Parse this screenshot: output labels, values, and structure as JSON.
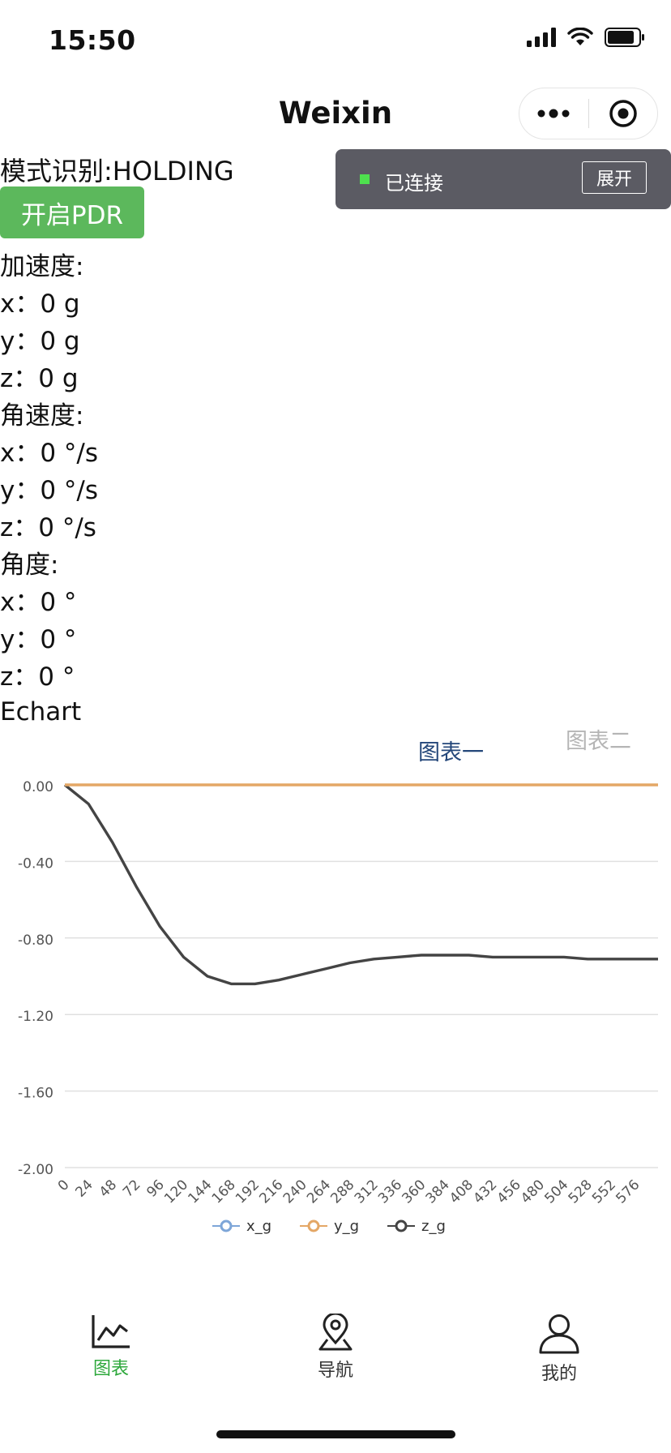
{
  "status_bar": {
    "time": "15:50"
  },
  "title_bar": {
    "title": "Weixin"
  },
  "toast": {
    "status": "已连接",
    "expand_label": "展开"
  },
  "mode": {
    "label": "模式识别:HOLDING"
  },
  "pdr_button": {
    "label": "开启PDR"
  },
  "sensors": {
    "accel_heading": "加速度:",
    "accel_x": "x：0 g",
    "accel_y": "y：0 g",
    "accel_z": "z：0 g",
    "gyro_heading": "角速度:",
    "gyro_x": "x：0 °/s",
    "gyro_y": "y：0 °/s",
    "gyro_z": "z：0 °/s",
    "angle_heading": "角度:",
    "angle_x": "x：0 °",
    "angle_y": "y：0 °",
    "angle_z": "z：0 °"
  },
  "echart_label": "Echart",
  "chart_tabs": {
    "active": "图表一",
    "inactive": "图表二"
  },
  "chart_data": {
    "type": "line",
    "x": [
      0,
      24,
      48,
      72,
      96,
      120,
      144,
      168,
      192,
      216,
      240,
      264,
      288,
      312,
      336,
      360,
      384,
      408,
      432,
      456,
      480,
      504,
      528,
      552,
      576
    ],
    "x_tick_labels": [
      "0",
      "24",
      "48",
      "72",
      "96",
      "120",
      "144",
      "168",
      "192",
      "216",
      "240",
      "264",
      "288",
      "312",
      "336",
      "360",
      "384",
      "408",
      "432",
      "456",
      "480",
      "504",
      "528",
      "552",
      "576"
    ],
    "x_max": 599,
    "y_tick_labels": [
      "0.00",
      "-0.40",
      "-0.80",
      "-1.20",
      "-1.60",
      "-2.00"
    ],
    "ylim": [
      -2.0,
      0.0
    ],
    "grid": true,
    "legend_position": "bottom",
    "series": [
      {
        "name": "x_g",
        "color": "#7ea6d8",
        "values": [
          0,
          0,
          0,
          0,
          0,
          0,
          0,
          0,
          0,
          0,
          0,
          0,
          0,
          0,
          0,
          0,
          0,
          0,
          0,
          0,
          0,
          0,
          0,
          0,
          0
        ]
      },
      {
        "name": "y_g",
        "color": "#e4a766",
        "values": [
          0,
          0,
          0,
          0,
          0,
          0,
          0,
          0,
          0,
          0,
          0,
          0,
          0,
          0,
          0,
          0,
          0,
          0,
          0,
          0,
          0,
          0,
          0,
          0,
          0
        ]
      },
      {
        "name": "z_g",
        "color": "#444444",
        "values": [
          0,
          -0.1,
          -0.3,
          -0.53,
          -0.74,
          -0.9,
          -1.0,
          -1.04,
          -1.04,
          -1.02,
          -0.99,
          -0.96,
          -0.93,
          -0.91,
          -0.9,
          -0.89,
          -0.89,
          -0.89,
          -0.9,
          -0.9,
          -0.9,
          -0.9,
          -0.91,
          -0.91,
          -0.91
        ]
      }
    ]
  },
  "tab_bar": {
    "items": [
      {
        "label": "图表"
      },
      {
        "label": "导航"
      },
      {
        "label": "我的"
      }
    ],
    "active_color": "#2ea83c"
  }
}
